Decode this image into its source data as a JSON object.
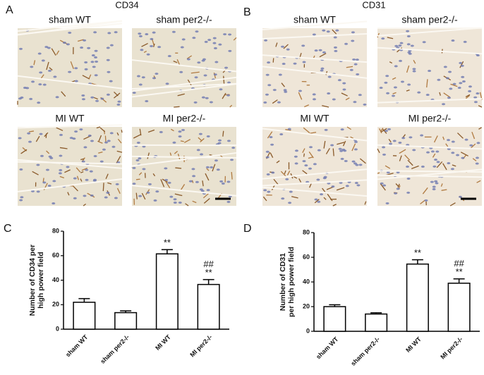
{
  "panels": [
    {
      "letter": "A",
      "title": "CD34",
      "images": [
        "sham WT",
        "sham per2-/-",
        "MI WT",
        "MI per2-/-"
      ]
    },
    {
      "letter": "B",
      "title": "CD31",
      "images": [
        "sham WT",
        "sham per2-/-",
        "MI WT",
        "MI per2-/-"
      ]
    }
  ],
  "chart_data": [
    {
      "type": "bar",
      "letter": "C",
      "ylabel": [
        "Number of CD34 per",
        "high power field"
      ],
      "categories": [
        "sham WT",
        "sham per2-/-",
        "MI WT",
        "MI per2-/-"
      ],
      "values": [
        22,
        13.5,
        61.5,
        36.5
      ],
      "errors": [
        3,
        1.5,
        3.5,
        4
      ],
      "color": "#ffffff",
      "ylim": [
        0,
        80
      ],
      "yticks": [
        0,
        20,
        40,
        60,
        80
      ],
      "annotations": [
        {
          "category": "MI WT",
          "text": "**"
        },
        {
          "category": "MI per2-/-",
          "text": "**"
        },
        {
          "category": "MI per2-/-",
          "text": "##"
        }
      ]
    },
    {
      "type": "bar",
      "letter": "D",
      "ylabel": [
        "Number of CD31",
        "per high power field"
      ],
      "categories": [
        "sham WT",
        "sham per2-/-",
        "MI WT",
        "MI per2-/-"
      ],
      "values": [
        20,
        14,
        54.5,
        39
      ],
      "errors": [
        1.5,
        1,
        3.5,
        3.5
      ],
      "color": "#ffffff",
      "ylim": [
        0,
        80
      ],
      "yticks": [
        0,
        20,
        40,
        60,
        80
      ],
      "annotations": [
        {
          "category": "MI WT",
          "text": "**"
        },
        {
          "category": "MI per2-/-",
          "text": "**"
        },
        {
          "category": "MI per2-/-",
          "text": "##"
        }
      ]
    }
  ]
}
